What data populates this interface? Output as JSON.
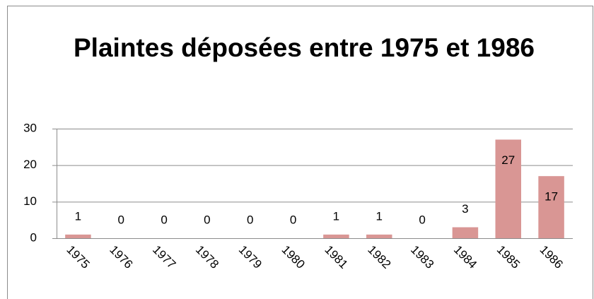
{
  "chart_data": {
    "type": "bar",
    "title": "Plaintes déposées entre 1975 et 1986",
    "categories": [
      "1975",
      "1976",
      "1977",
      "1978",
      "1979",
      "1980",
      "1981",
      "1982",
      "1983",
      "1984",
      "1985",
      "1986"
    ],
    "values": [
      1,
      0,
      0,
      0,
      0,
      0,
      1,
      1,
      0,
      3,
      27,
      17
    ],
    "color": "#d99694",
    "ylim": [
      0,
      30
    ],
    "yticks": [
      0,
      10,
      20,
      30
    ],
    "grid": true
  }
}
